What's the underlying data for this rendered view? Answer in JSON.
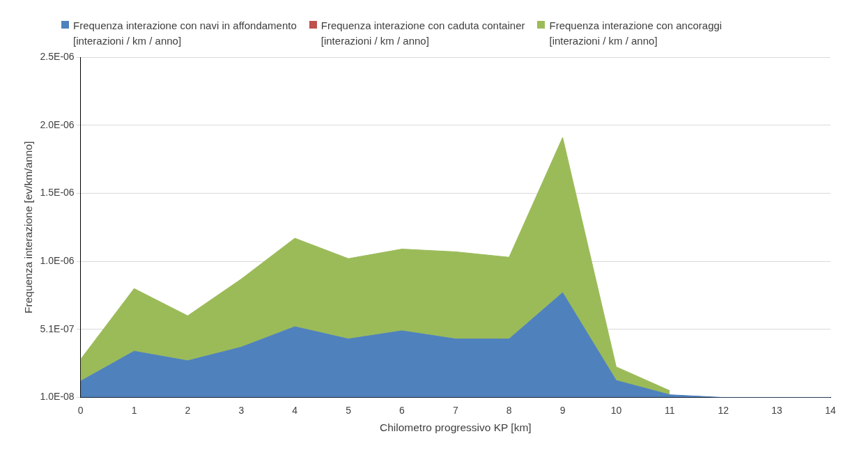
{
  "chart_data": {
    "type": "area",
    "stacked": true,
    "xlabel": "Chilometro progressivo KP [km]",
    "ylabel": "Frequenza interazione [ev/km/anno]",
    "x": [
      0,
      1,
      2,
      3,
      4,
      5,
      6,
      7,
      8,
      9,
      10,
      11,
      12,
      13,
      14
    ],
    "xlim": [
      0,
      14
    ],
    "xticks": [
      0,
      1,
      2,
      3,
      4,
      5,
      6,
      7,
      8,
      9,
      10,
      11,
      12,
      13,
      14
    ],
    "ylim": [
      1e-08,
      2.51e-06
    ],
    "yticks": [
      {
        "value": 1e-08,
        "label": "1.0E-08"
      },
      {
        "value": 5.1e-07,
        "label": "5.1E-07"
      },
      {
        "value": 1.01e-06,
        "label": "1.0E-06"
      },
      {
        "value": 1.51e-06,
        "label": "1.5E-06"
      },
      {
        "value": 2.01e-06,
        "label": "2.0E-06"
      },
      {
        "value": 2.51e-06,
        "label": "2.5E-06"
      }
    ],
    "grid": "y",
    "legend": "top",
    "series": [
      {
        "name": "Frequenza interazione con navi in affondamento [interazioni / km / anno]",
        "color": "#4f81bd",
        "values": [
          1.3e-07,
          3.5e-07,
          2.8e-07,
          3.8e-07,
          5.3e-07,
          4.4e-07,
          5e-07,
          4.4e-07,
          4.4e-07,
          7.8e-07,
          1.35e-07,
          3e-08,
          1e-08,
          1e-08,
          1e-08
        ]
      },
      {
        "name": "Frequenza interazione con caduta container [interazioni / km / anno]",
        "color": "#c0504d",
        "values": [
          null,
          null,
          null,
          null,
          null,
          null,
          null,
          null,
          null,
          null,
          null,
          null,
          null,
          null,
          null
        ]
      },
      {
        "name": "Frequenza interazione con ancoraggi [interazioni / km / anno]",
        "color": "#9bbb59",
        "values": [
          1.6e-07,
          4.6e-07,
          3.3e-07,
          5e-07,
          6.5e-07,
          5.9e-07,
          6e-07,
          6.4e-07,
          6e-07,
          1.14e-06,
          1e-07,
          3e-08,
          null,
          null,
          null
        ]
      }
    ]
  }
}
